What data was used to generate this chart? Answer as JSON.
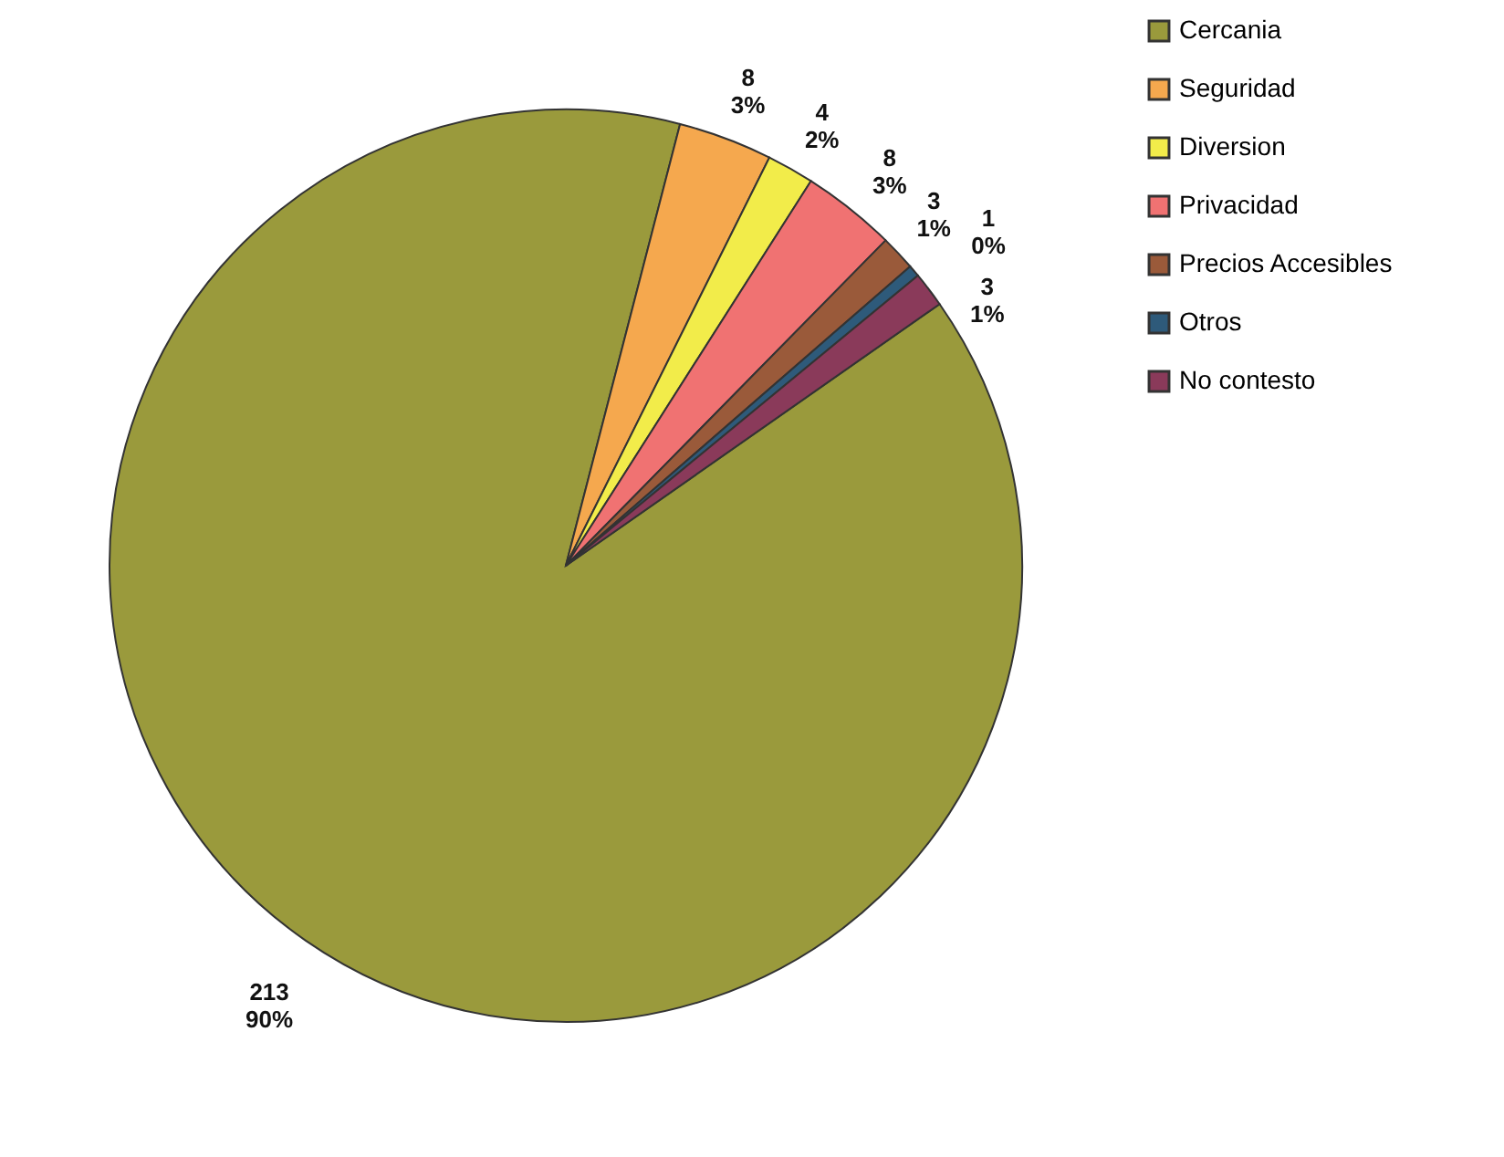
{
  "chart_data": {
    "type": "pie",
    "categories": [
      "Cercania",
      "Seguridad",
      "Diversion",
      "Privacidad",
      "Precios Accesibles",
      "Otros",
      "No contesto"
    ],
    "values": [
      213,
      8,
      4,
      8,
      3,
      1,
      3
    ],
    "colors": [
      "#9a9a3c",
      "#f5a84e",
      "#f2ec4a",
      "#f07272",
      "#9a5a3a",
      "#2e5a7a",
      "#8a3a5a"
    ],
    "value_labels": [
      "213\n90%",
      "8\n3%",
      "4\n2%",
      "8\n3%",
      "3\n1%",
      "1\n0%",
      "3\n1%"
    ],
    "legend": "right"
  }
}
